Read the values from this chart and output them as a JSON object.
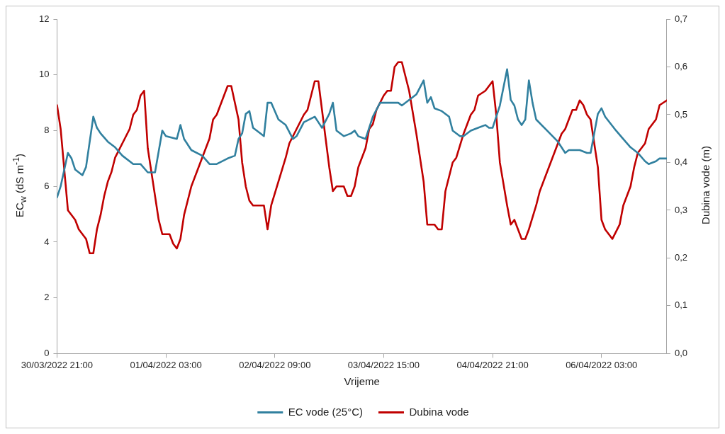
{
  "chart_data": {
    "type": "line",
    "xlabel": "Vrijeme",
    "ylabel": "EC$_{w}$ (dS m$^{-1}$)",
    "y2label": "Dubina vode (m)",
    "xlim": [
      "2022-03-30T21:00",
      "2022-04-06T21:00"
    ],
    "xticks": [
      {
        "value": "2022-03-30T21:00",
        "label": "30/03/2022 21:00"
      },
      {
        "value": "2022-04-01T03:00",
        "label": "01/04/2022 03:00"
      },
      {
        "value": "2022-04-02T09:00",
        "label": "02/04/2022 09:00"
      },
      {
        "value": "2022-04-03T15:00",
        "label": "03/04/2022 15:00"
      },
      {
        "value": "2022-04-04T21:00",
        "label": "04/04/2022 21:00"
      },
      {
        "value": "2022-04-06T03:00",
        "label": "06/04/2022 03:00"
      }
    ],
    "ylim": [
      0,
      12
    ],
    "yticks": [
      0,
      2,
      4,
      6,
      8,
      10,
      12
    ],
    "y2lim": [
      0,
      0.7
    ],
    "y2ticks": [
      {
        "value": 0,
        "label": "0,0"
      },
      {
        "value": 0.1,
        "label": "0,1"
      },
      {
        "value": 0.2,
        "label": "0,2"
      },
      {
        "value": 0.3,
        "label": "0,3"
      },
      {
        "value": 0.4,
        "label": "0,4"
      },
      {
        "value": 0.5,
        "label": "0,5"
      },
      {
        "value": 0.6,
        "label": "0,6"
      },
      {
        "value": 0.7,
        "label": "0,7"
      }
    ],
    "grid": false,
    "legend": "bottom",
    "marker": "none",
    "line_style": "solid",
    "series": [
      {
        "name": "EC vode (25°C)",
        "color": "#31809f",
        "x": [
          "2022-03-30T21:00",
          "2022-03-30T22:00",
          "2022-03-31T00:00",
          "2022-03-31T01:00",
          "2022-03-31T02:00",
          "2022-03-31T04:00",
          "2022-03-31T05:00",
          "2022-03-31T07:00",
          "2022-03-31T08:00",
          "2022-03-31T09:00",
          "2022-03-31T11:00",
          "2022-03-31T13:00",
          "2022-03-31T15:00",
          "2022-03-31T18:00",
          "2022-03-31T20:00",
          "2022-03-31T22:00",
          "2022-04-01T00:00",
          "2022-04-01T02:00",
          "2022-04-01T03:00",
          "2022-04-01T06:00",
          "2022-04-01T07:00",
          "2022-04-01T08:00",
          "2022-04-01T10:00",
          "2022-04-01T13:00",
          "2022-04-01T15:00",
          "2022-04-01T17:00",
          "2022-04-01T20:00",
          "2022-04-01T22:00",
          "2022-04-01T23:00",
          "2022-04-02T00:00",
          "2022-04-02T01:00",
          "2022-04-02T02:00",
          "2022-04-02T03:00",
          "2022-04-02T06:00",
          "2022-04-02T07:00",
          "2022-04-02T08:00",
          "2022-04-02T10:00",
          "2022-04-02T12:00",
          "2022-04-02T14:00",
          "2022-04-02T15:00",
          "2022-04-02T17:00",
          "2022-04-02T20:00",
          "2022-04-02T21:00",
          "2022-04-02T22:00",
          "2022-04-03T00:00",
          "2022-04-03T01:00",
          "2022-04-03T02:00",
          "2022-04-03T04:00",
          "2022-04-03T06:00",
          "2022-04-03T07:00",
          "2022-04-03T08:00",
          "2022-04-03T10:00",
          "2022-04-03T12:00",
          "2022-04-03T14:00",
          "2022-04-03T16:00",
          "2022-04-03T19:00",
          "2022-04-03T20:00",
          "2022-04-03T23:00",
          "2022-04-04T00:00",
          "2022-04-04T02:00",
          "2022-04-04T03:00",
          "2022-04-04T04:00",
          "2022-04-04T05:00",
          "2022-04-04T07:00",
          "2022-04-04T09:00",
          "2022-04-04T10:00",
          "2022-04-04T12:00",
          "2022-04-04T13:00",
          "2022-04-04T15:00",
          "2022-04-04T17:00",
          "2022-04-04T19:00",
          "2022-04-04T20:00",
          "2022-04-04T21:00",
          "2022-04-04T23:00",
          "2022-04-05T01:00",
          "2022-04-05T02:00",
          "2022-04-05T03:00",
          "2022-04-05T04:00",
          "2022-04-05T05:00",
          "2022-04-05T06:00",
          "2022-04-05T07:00",
          "2022-04-05T08:00",
          "2022-04-05T09:00",
          "2022-04-05T12:00",
          "2022-04-05T15:00",
          "2022-04-05T17:00",
          "2022-04-05T18:00",
          "2022-04-05T21:00",
          "2022-04-05T23:00",
          "2022-04-06T00:00",
          "2022-04-06T02:00",
          "2022-04-06T03:00",
          "2022-04-06T04:00",
          "2022-04-06T07:00",
          "2022-04-06T09:00",
          "2022-04-06T11:00",
          "2022-04-06T13:00",
          "2022-04-06T15:00",
          "2022-04-06T16:00",
          "2022-04-06T18:00",
          "2022-04-06T19:00",
          "2022-04-06T21:00"
        ],
        "values": [
          5.6,
          6.0,
          7.2,
          7.0,
          6.6,
          6.4,
          6.7,
          8.5,
          8.1,
          7.9,
          7.6,
          7.4,
          7.1,
          6.8,
          6.8,
          6.5,
          6.5,
          8.0,
          7.8,
          7.7,
          8.2,
          7.7,
          7.3,
          7.1,
          6.8,
          6.8,
          7.0,
          7.1,
          7.7,
          7.9,
          8.6,
          8.7,
          8.1,
          7.8,
          9.0,
          9.0,
          8.4,
          8.2,
          7.7,
          7.8,
          8.3,
          8.5,
          8.3,
          8.1,
          8.6,
          9.0,
          8.0,
          7.8,
          7.9,
          8.0,
          7.8,
          7.7,
          8.5,
          9.0,
          9.0,
          9.0,
          8.9,
          9.2,
          9.3,
          9.8,
          9.0,
          9.2,
          8.8,
          8.7,
          8.5,
          8.0,
          7.8,
          7.8,
          8.0,
          8.1,
          8.2,
          8.1,
          8.1,
          8.9,
          10.2,
          9.1,
          8.9,
          8.4,
          8.2,
          8.4,
          9.8,
          9.0,
          8.4,
          8.0,
          7.6,
          7.2,
          7.3,
          7.3,
          7.2,
          7.2,
          8.6,
          8.8,
          8.5,
          8.0,
          7.7,
          7.4,
          7.2,
          6.9,
          6.8,
          6.9,
          7.0,
          7.0
        ]
      },
      {
        "name": "Dubina vode",
        "color": "#c00000",
        "axis": "y2",
        "x": [
          "2022-03-30T21:00",
          "2022-03-30T22:00",
          "2022-03-31T00:00",
          "2022-03-31T01:00",
          "2022-03-31T02:00",
          "2022-03-31T03:00",
          "2022-03-31T04:00",
          "2022-03-31T05:00",
          "2022-03-31T06:00",
          "2022-03-31T07:00",
          "2022-03-31T08:00",
          "2022-03-31T09:00",
          "2022-03-31T10:00",
          "2022-03-31T11:00",
          "2022-03-31T12:00",
          "2022-03-31T13:00",
          "2022-03-31T15:00",
          "2022-03-31T17:00",
          "2022-03-31T18:00",
          "2022-03-31T19:00",
          "2022-03-31T20:00",
          "2022-03-31T21:00",
          "2022-03-31T22:00",
          "2022-04-01T01:00",
          "2022-04-01T02:00",
          "2022-04-01T04:00",
          "2022-04-01T05:00",
          "2022-04-01T06:00",
          "2022-04-01T07:00",
          "2022-04-01T08:00",
          "2022-04-01T10:00",
          "2022-04-01T13:00",
          "2022-04-01T15:00",
          "2022-04-01T16:00",
          "2022-04-01T17:00",
          "2022-04-01T19:00",
          "2022-04-01T20:00",
          "2022-04-01T21:00",
          "2022-04-01T23:00",
          "2022-04-02T00:00",
          "2022-04-02T01:00",
          "2022-04-02T02:00",
          "2022-04-02T03:00",
          "2022-04-02T06:00",
          "2022-04-02T07:00",
          "2022-04-02T08:00",
          "2022-04-02T10:00",
          "2022-04-02T12:00",
          "2022-04-02T13:00",
          "2022-04-02T15:00",
          "2022-04-02T17:00",
          "2022-04-02T18:00",
          "2022-04-02T19:00",
          "2022-04-02T20:00",
          "2022-04-02T21:00",
          "2022-04-02T23:00",
          "2022-04-03T00:00",
          "2022-04-03T01:00",
          "2022-04-03T02:00",
          "2022-04-03T04:00",
          "2022-04-03T05:00",
          "2022-04-03T06:00",
          "2022-04-03T07:00",
          "2022-04-03T08:00",
          "2022-04-03T10:00",
          "2022-04-03T11:00",
          "2022-04-03T12:00",
          "2022-04-03T13:00",
          "2022-04-03T15:00",
          "2022-04-03T16:00",
          "2022-04-03T17:00",
          "2022-04-03T18:00",
          "2022-04-03T19:00",
          "2022-04-03T20:00",
          "2022-04-03T22:00",
          "2022-04-04T00:00",
          "2022-04-04T02:00",
          "2022-04-04T03:00",
          "2022-04-04T05:00",
          "2022-04-04T06:00",
          "2022-04-04T07:00",
          "2022-04-04T08:00",
          "2022-04-04T10:00",
          "2022-04-04T11:00",
          "2022-04-04T13:00",
          "2022-04-04T15:00",
          "2022-04-04T16:00",
          "2022-04-04T17:00",
          "2022-04-04T19:00",
          "2022-04-04T21:00",
          "2022-04-04T22:00",
          "2022-04-04T23:00",
          "2022-04-05T01:00",
          "2022-04-05T02:00",
          "2022-04-05T03:00",
          "2022-04-05T04:00",
          "2022-04-05T05:00",
          "2022-04-05T06:00",
          "2022-04-05T07:00",
          "2022-04-05T09:00",
          "2022-04-05T10:00",
          "2022-04-05T11:00",
          "2022-04-05T13:00",
          "2022-04-05T15:00",
          "2022-04-05T16:00",
          "2022-04-05T17:00",
          "2022-04-05T19:00",
          "2022-04-05T20:00",
          "2022-04-05T21:00",
          "2022-04-05T22:00",
          "2022-04-05T23:00",
          "2022-04-06T00:00",
          "2022-04-06T02:00",
          "2022-04-06T03:00",
          "2022-04-06T04:00",
          "2022-04-06T06:00",
          "2022-04-06T08:00",
          "2022-04-06T09:00",
          "2022-04-06T11:00",
          "2022-04-06T12:00",
          "2022-04-06T13:00",
          "2022-04-06T15:00",
          "2022-04-06T16:00",
          "2022-04-06T18:00",
          "2022-04-06T19:00",
          "2022-04-06T21:00"
        ],
        "values": [
          0.52,
          0.47,
          0.3,
          0.29,
          0.28,
          0.26,
          0.25,
          0.24,
          0.21,
          0.21,
          0.26,
          0.29,
          0.33,
          0.36,
          0.38,
          0.41,
          0.44,
          0.47,
          0.5,
          0.51,
          0.54,
          0.55,
          0.43,
          0.28,
          0.25,
          0.25,
          0.23,
          0.22,
          0.24,
          0.29,
          0.35,
          0.41,
          0.45,
          0.49,
          0.5,
          0.54,
          0.56,
          0.56,
          0.49,
          0.4,
          0.35,
          0.32,
          0.31,
          0.31,
          0.26,
          0.31,
          0.36,
          0.41,
          0.44,
          0.47,
          0.5,
          0.51,
          0.54,
          0.57,
          0.57,
          0.45,
          0.39,
          0.34,
          0.35,
          0.35,
          0.33,
          0.33,
          0.35,
          0.39,
          0.43,
          0.47,
          0.48,
          0.51,
          0.54,
          0.55,
          0.55,
          0.6,
          0.61,
          0.61,
          0.55,
          0.46,
          0.36,
          0.27,
          0.27,
          0.26,
          0.26,
          0.34,
          0.4,
          0.41,
          0.46,
          0.5,
          0.51,
          0.54,
          0.55,
          0.57,
          0.5,
          0.4,
          0.31,
          0.27,
          0.28,
          0.26,
          0.24,
          0.24,
          0.26,
          0.31,
          0.34,
          0.36,
          0.4,
          0.44,
          0.46,
          0.47,
          0.51,
          0.51,
          0.53,
          0.52,
          0.5,
          0.49,
          0.39,
          0.28,
          0.26,
          0.24,
          0.27,
          0.31,
          0.35,
          0.39,
          0.42,
          0.44,
          0.47,
          0.49,
          0.52,
          0.53
        ]
      }
    ]
  }
}
